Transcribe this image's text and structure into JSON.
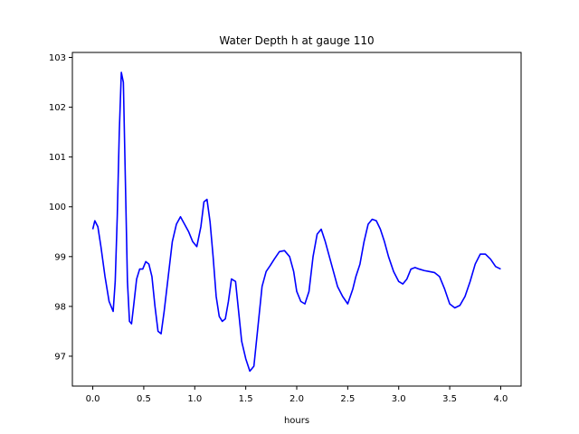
{
  "chart_data": {
    "type": "line",
    "title": "Water Depth h at gauge 110",
    "xlabel": "hours",
    "ylabel": "",
    "xlim": [
      -0.2,
      4.2
    ],
    "ylim": [
      96.4,
      103.1
    ],
    "xticks": [
      0.0,
      0.5,
      1.0,
      1.5,
      2.0,
      2.5,
      3.0,
      3.5,
      4.0
    ],
    "xtick_labels": [
      "0.0",
      "0.5",
      "1.0",
      "1.5",
      "2.0",
      "2.5",
      "3.0",
      "3.5",
      "4.0"
    ],
    "yticks": [
      97,
      98,
      99,
      100,
      101,
      102,
      103
    ],
    "ytick_labels": [
      "97",
      "98",
      "99",
      "100",
      "101",
      "102",
      "103"
    ],
    "grid": false,
    "series": [
      {
        "color": "#0000ff",
        "x": [
          0.0,
          0.02,
          0.05,
          0.08,
          0.12,
          0.16,
          0.2,
          0.22,
          0.24,
          0.26,
          0.28,
          0.3,
          0.32,
          0.34,
          0.36,
          0.38,
          0.4,
          0.43,
          0.46,
          0.49,
          0.52,
          0.55,
          0.58,
          0.61,
          0.64,
          0.67,
          0.7,
          0.74,
          0.78,
          0.82,
          0.86,
          0.9,
          0.94,
          0.98,
          1.02,
          1.06,
          1.09,
          1.12,
          1.15,
          1.18,
          1.21,
          1.24,
          1.27,
          1.3,
          1.33,
          1.36,
          1.4,
          1.43,
          1.46,
          1.5,
          1.54,
          1.58,
          1.62,
          1.66,
          1.7,
          1.74,
          1.78,
          1.83,
          1.88,
          1.93,
          1.97,
          2.0,
          2.04,
          2.08,
          2.12,
          2.16,
          2.2,
          2.24,
          2.28,
          2.32,
          2.36,
          2.4,
          2.45,
          2.5,
          2.55,
          2.58,
          2.62,
          2.66,
          2.7,
          2.74,
          2.78,
          2.82,
          2.86,
          2.9,
          2.95,
          3.0,
          3.04,
          3.08,
          3.12,
          3.16,
          3.2,
          3.25,
          3.3,
          3.35,
          3.4,
          3.45,
          3.5,
          3.55,
          3.6,
          3.65,
          3.7,
          3.75,
          3.8,
          3.85,
          3.9,
          3.95,
          4.0
        ],
        "values": [
          99.55,
          99.72,
          99.6,
          99.2,
          98.6,
          98.1,
          97.9,
          98.5,
          99.8,
          101.5,
          102.7,
          102.5,
          100.5,
          98.5,
          97.7,
          97.65,
          98.0,
          98.55,
          98.75,
          98.75,
          98.9,
          98.85,
          98.6,
          98.0,
          97.5,
          97.45,
          97.9,
          98.6,
          99.3,
          99.65,
          99.8,
          99.65,
          99.5,
          99.3,
          99.2,
          99.6,
          100.1,
          100.15,
          99.7,
          99.0,
          98.2,
          97.8,
          97.7,
          97.75,
          98.1,
          98.55,
          98.5,
          97.9,
          97.3,
          96.95,
          96.7,
          96.8,
          97.6,
          98.4,
          98.7,
          98.82,
          98.95,
          99.1,
          99.12,
          99.0,
          98.7,
          98.3,
          98.1,
          98.05,
          98.3,
          99.0,
          99.45,
          99.55,
          99.3,
          99.0,
          98.7,
          98.4,
          98.2,
          98.05,
          98.35,
          98.6,
          98.85,
          99.3,
          99.65,
          99.75,
          99.72,
          99.55,
          99.3,
          99.0,
          98.7,
          98.5,
          98.45,
          98.55,
          98.75,
          98.78,
          98.75,
          98.72,
          98.7,
          98.68,
          98.6,
          98.35,
          98.05,
          97.97,
          98.02,
          98.2,
          98.5,
          98.85,
          99.05,
          99.05,
          98.95,
          98.8,
          98.75
        ]
      }
    ]
  }
}
